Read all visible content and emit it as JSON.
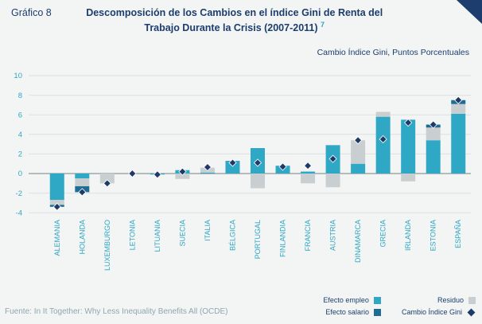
{
  "header": {
    "label": "Gráfico 8",
    "title_line1": "Descomposición de los Cambios en el índice Gini de Renta del",
    "title_line2": "Trabajo Durante la Crisis (2007-2011)",
    "footnote_marker": "7"
  },
  "subtitle": "Cambio Índice Gini, Puntos Porcentuales",
  "footer": {
    "source": "Fuente: In It Together: Why Less Inequality Benefits All (OCDE)"
  },
  "colors": {
    "empleo": "#2FA8C6",
    "salario": "#1D6E96",
    "residuo": "#C9CED0",
    "gini": "#1F3A68",
    "axis_text": "#2FA6C4",
    "gridline": "#DCE0E1",
    "axis_zero": "#9FA8AA",
    "title": "#1C3D6E",
    "accent_triangle": "#1C3D6E",
    "source_text": "#8FA6B0",
    "background": "#F3F5F4"
  },
  "legend": {
    "items": [
      {
        "label": "Efecto empleo",
        "key": "empleo",
        "marker": "square"
      },
      {
        "label": "Residuo",
        "key": "residuo",
        "marker": "square"
      },
      {
        "label": "Efecto salario",
        "key": "salario",
        "marker": "square"
      },
      {
        "label": "Cambio Índice Gini",
        "key": "gini",
        "marker": "diamond"
      }
    ]
  },
  "chart_data": {
    "type": "bar",
    "stacked": true,
    "title": "Descomposición de los Cambios en el índice Gini de Renta del Trabajo Durante la Crisis (2007-2011)",
    "unit_label": "Cambio Índice Gini, Puntos Porcentuales",
    "xlabel": "",
    "ylabel": "",
    "ylim": [
      -4,
      10
    ],
    "yticks": [
      10,
      8,
      6,
      4,
      2,
      0,
      -2,
      -4
    ],
    "grid": true,
    "legend_position": "bottom-right",
    "categories": [
      "ALEMANIA",
      "HOLANDA",
      "LUXEMBURGO",
      "LETONIA",
      "LITUANIA",
      "SUECIA",
      "ITALIA",
      "BÉLGICA",
      "PORTUGAL",
      "FINLANDIA",
      "FRANCIA",
      "AUSTRIA",
      "DINAMARCA",
      "GRECIA",
      "IRLANDA",
      "ESTONIA",
      "ESPAÑA"
    ],
    "series": [
      {
        "name": "Efecto empleo",
        "key": "empleo",
        "role": "stack",
        "values": [
          -2.7,
          -0.5,
          0,
          0,
          -0.1,
          0.35,
          0.1,
          1.3,
          2.6,
          0.8,
          0.2,
          2.9,
          1.0,
          5.8,
          5.5,
          3.4,
          6.1
        ]
      },
      {
        "name": "Residuo",
        "key": "residuo",
        "role": "stack",
        "values": [
          -0.5,
          -0.8,
          -1.0,
          0,
          0,
          -0.55,
          0.5,
          0,
          -1.5,
          0,
          -1.0,
          -1.4,
          2.4,
          0.5,
          -0.8,
          1.3,
          1.0
        ]
      },
      {
        "name": "Efecto salario",
        "key": "salario",
        "role": "stack",
        "values": [
          -0.2,
          -0.6,
          0,
          0,
          0,
          0,
          0,
          0,
          0,
          0,
          0,
          0,
          0,
          0,
          0,
          0.3,
          0.4
        ]
      },
      {
        "name": "Cambio Índice Gini",
        "key": "gini",
        "role": "marker",
        "values": [
          -3.4,
          -1.9,
          -1.0,
          0.0,
          -0.1,
          0.2,
          0.65,
          1.1,
          1.1,
          0.7,
          0.8,
          1.5,
          3.4,
          3.5,
          5.2,
          5.0,
          7.5
        ]
      }
    ]
  }
}
